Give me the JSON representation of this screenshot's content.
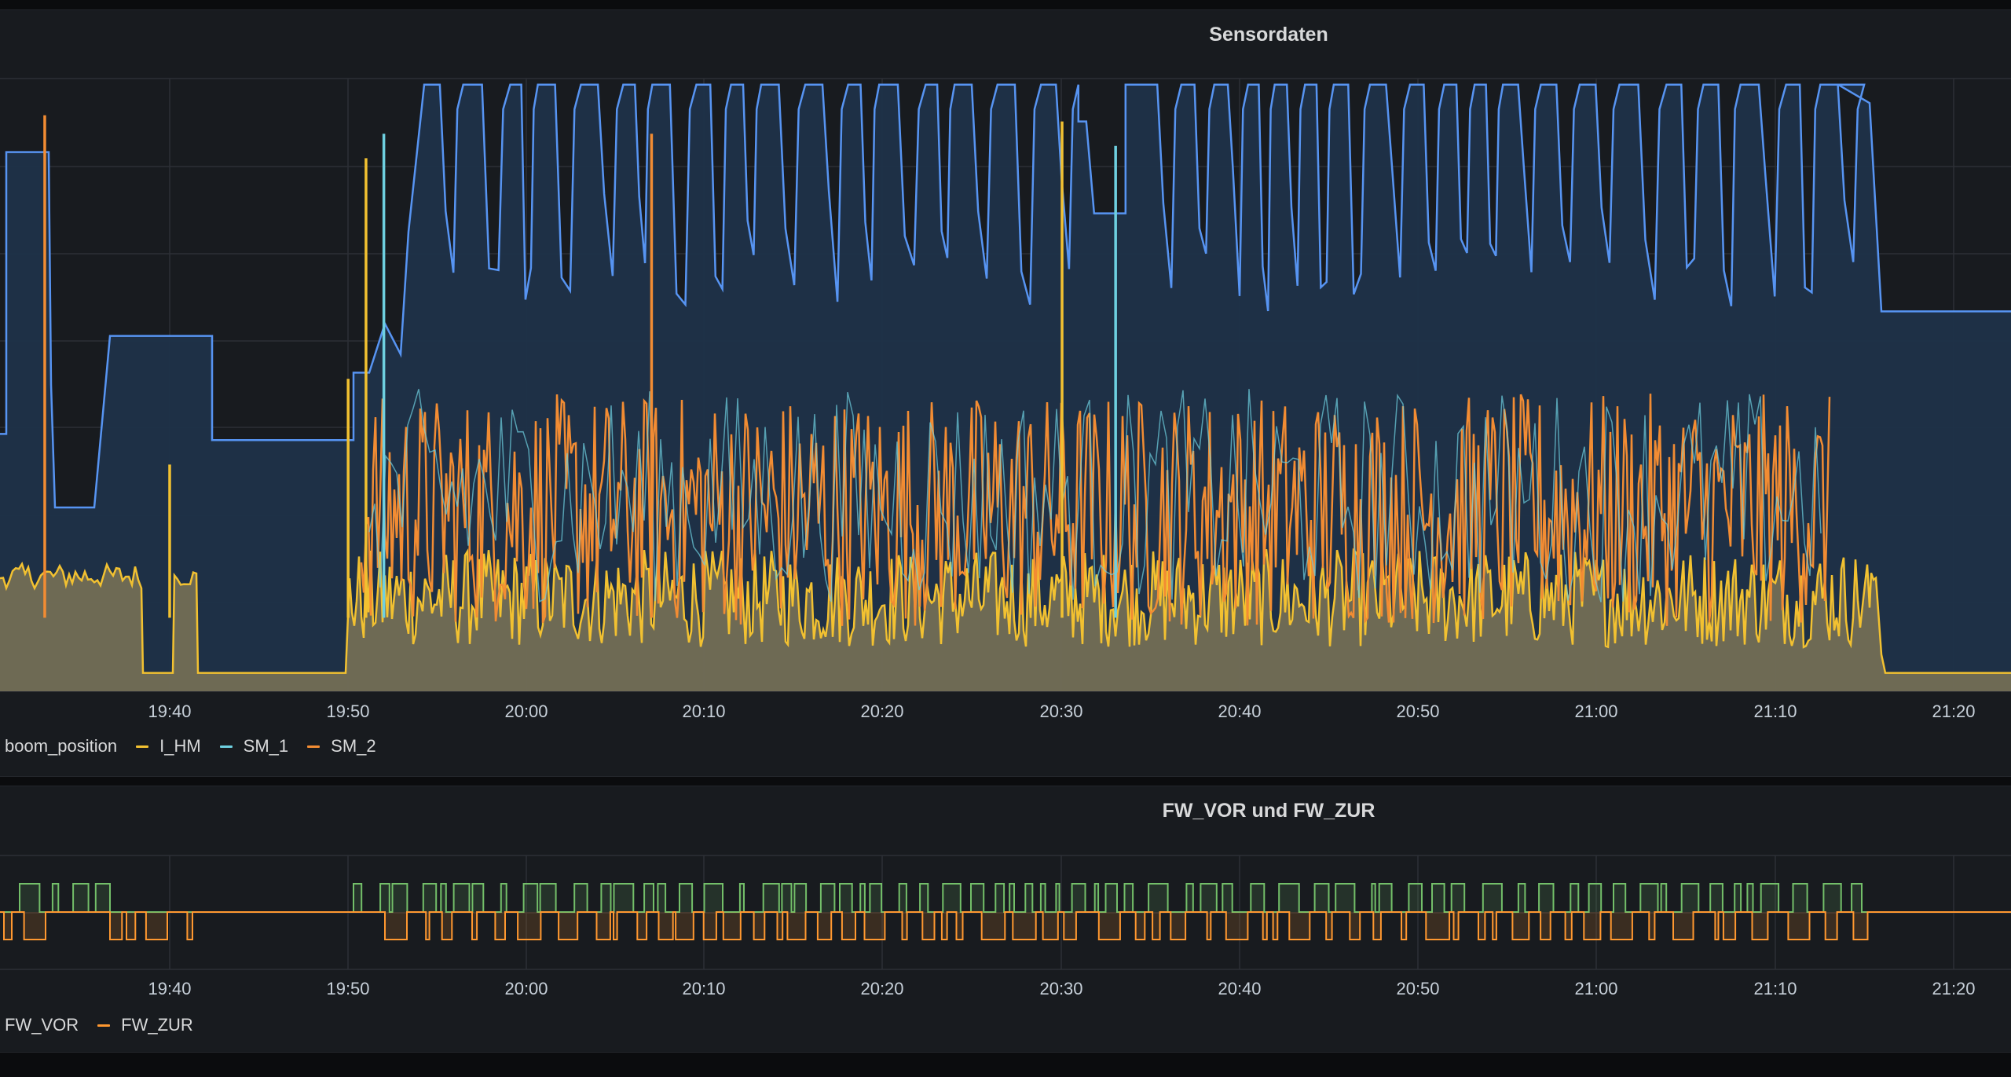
{
  "panels": [
    {
      "title": "Sensordaten",
      "legend": [
        {
          "name": "boom_position",
          "color": ""
        },
        {
          "name": "I_HM",
          "color": "#f2c131"
        },
        {
          "name": "SM_1",
          "color": "#6ed0e0"
        },
        {
          "name": "SM_2",
          "color": "#f28c33"
        }
      ]
    },
    {
      "title": "FW_VOR und FW_ZUR",
      "legend": [
        {
          "name": "FW_VOR",
          "color": ""
        },
        {
          "name": "FW_ZUR",
          "color": "#ff9830"
        }
      ]
    }
  ],
  "chart_data": [
    {
      "type": "area",
      "title": "Sensordaten",
      "x_ticks": [
        "19:40",
        "19:50",
        "20:00",
        "20:10",
        "20:20",
        "20:30",
        "20:40",
        "20:50",
        "21:00",
        "21:10",
        "21:20"
      ],
      "grid": true,
      "legend_position": "bottom-left",
      "series": [
        {
          "name": "boom_position",
          "color": "#5794f2",
          "description_values": "step signal, high plateau ~0.99 during cycles, baseline ~0.41"
        },
        {
          "name": "I_HM",
          "color": "#f2c131"
        },
        {
          "name": "SM_1",
          "color": "#6ed0e0"
        },
        {
          "name": "SM_2",
          "color": "#f28c33"
        }
      ],
      "spikes": [
        {
          "series": "SM_2",
          "time": "19:33",
          "level": 0.94
        },
        {
          "series": "I_HM",
          "time": "19:40",
          "level": 0.37
        },
        {
          "series": "I_HM",
          "time": "19:50",
          "level": 0.51
        },
        {
          "series": "I_HM",
          "time": "19:51",
          "level": 0.87
        },
        {
          "series": "SM_1",
          "time": "19:52",
          "level": 0.91
        },
        {
          "series": "SM_2",
          "time": "20:07",
          "level": 0.91
        },
        {
          "series": "I_HM",
          "time": "20:30",
          "level": 0.93
        },
        {
          "series": "SM_1",
          "time": "20:33",
          "level": 0.89
        }
      ]
    },
    {
      "type": "line",
      "title": "FW_VOR und FW_ZUR",
      "x_ticks": [
        "19:40",
        "19:50",
        "20:00",
        "20:10",
        "20:20",
        "20:30",
        "20:40",
        "20:50",
        "21:00",
        "21:10",
        "21:20"
      ],
      "grid": true,
      "legend_position": "bottom-left",
      "series": [
        {
          "name": "FW_VOR",
          "color": "#73bf69"
        },
        {
          "name": "FW_ZUR",
          "color": "#ff9830"
        }
      ]
    }
  ]
}
